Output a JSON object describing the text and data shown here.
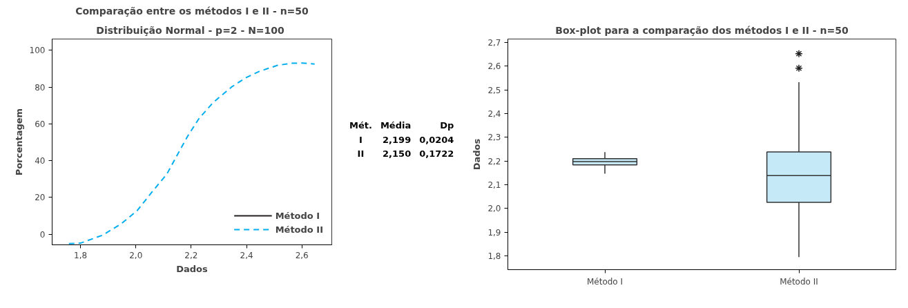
{
  "chart_data": [
    {
      "type": "line",
      "title": "Comparação entre os métodos I e II - n=50",
      "subtitle": "Distribuição Normal -  p=2 - N=100",
      "xlabel": "Dados",
      "ylabel": "Porcentagem",
      "x": [
        1.758,
        1.8,
        1.879,
        1.946,
        2.004,
        2.0625,
        2.1125,
        2.154,
        2.1875,
        2.229,
        2.279,
        2.346,
        2.396,
        2.446,
        2.5125,
        2.5625,
        2.6,
        2.646
      ],
      "series": [
        {
          "name": "Método I",
          "color": "#231f20",
          "line_style": "solid",
          "values": [
            null,
            null,
            null,
            null,
            null,
            null,
            null,
            null,
            null,
            null,
            null,
            null,
            null,
            null,
            null,
            null,
            null,
            null
          ]
        },
        {
          "name": "Método II",
          "color": "#00aeef",
          "line_style": "dashed",
          "values": [
            -5.1,
            -4.9,
            -0.6,
            5.5,
            12.7,
            23.7,
            32.8,
            44.3,
            53.4,
            63.1,
            71.6,
            80.1,
            85.0,
            88.6,
            91.9,
            93.0,
            93.1,
            92.6
          ]
        }
      ],
      "xlim": [
        1.6975,
        2.708
      ],
      "ylim": [
        -5.8,
        106.2
      ],
      "xticks": [
        {
          "value": 1.8,
          "label": "1,8"
        },
        {
          "value": 2.0,
          "label": "2,0"
        },
        {
          "value": 2.2,
          "label": "2,2"
        },
        {
          "value": 2.4,
          "label": "2,4"
        },
        {
          "value": 2.6,
          "label": "2,6"
        }
      ],
      "yticks": [
        0,
        20,
        40,
        60,
        80,
        100
      ],
      "annotations": [
        "Mét. Média Dp",
        "I 2,199 0,0204",
        "II 2,150 0,1722"
      ],
      "legend": "right",
      "grid": false
    },
    {
      "type": "box",
      "title": "Box-plot para a comparação dos métodos I e II - n=50",
      "ylabel": "Dados",
      "categories": [
        "Método I",
        "Método II"
      ],
      "color": "#c6e9f8",
      "boxes": [
        {
          "low": 2.147,
          "q1": 2.184,
          "median": 2.198,
          "q3": 2.21,
          "high": 2.238
        },
        {
          "low": 1.795,
          "q1": 2.026,
          "median": 2.139,
          "q3": 2.239,
          "high": 2.533,
          "outliers": [
            2.592,
            2.653
          ]
        }
      ],
      "ylim": [
        1.742,
        2.715
      ],
      "yticks": [
        {
          "value": 1.8,
          "label": "1,8"
        },
        {
          "value": 1.9,
          "label": "1,9"
        },
        {
          "value": 2.0,
          "label": "2,0"
        },
        {
          "value": 2.1,
          "label": "2,1"
        },
        {
          "value": 2.2,
          "label": "2,2"
        },
        {
          "value": 2.3,
          "label": "2,3"
        },
        {
          "value": 2.4,
          "label": "2,4"
        },
        {
          "value": 2.5,
          "label": "2,5"
        },
        {
          "value": 2.6,
          "label": "2,6"
        },
        {
          "value": 2.7,
          "label": "2,7"
        }
      ],
      "grid": false
    }
  ]
}
